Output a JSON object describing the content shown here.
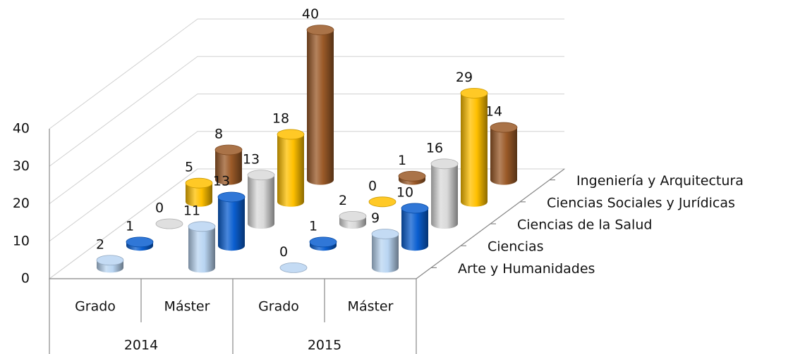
{
  "chart_data": {
    "type": "bar3d",
    "categories": [
      "Grado",
      "Máster",
      "Grado",
      "Máster"
    ],
    "category_groups": [
      "2014",
      "2015"
    ],
    "series": [
      {
        "name": "Arte y Humanidades",
        "color": "#b9d5f2",
        "values": [
          2,
          11,
          0,
          9
        ]
      },
      {
        "name": "Ciencias",
        "color": "#0b5fd0",
        "values": [
          1,
          13,
          1,
          10
        ]
      },
      {
        "name": "Ciencias de la Salud",
        "color": "#d9d9d9",
        "values": [
          0,
          13,
          2,
          16
        ]
      },
      {
        "name": "Ciencias Sociales y Jurídicas",
        "color": "#ffc000",
        "values": [
          5,
          18,
          0,
          29
        ]
      },
      {
        "name": "Ingeniería y Arquitectura",
        "color": "#9b5a28",
        "values": [
          8,
          40,
          1,
          14
        ]
      }
    ],
    "ylim": [
      0,
      40
    ],
    "yticks": [
      0,
      10,
      20,
      30,
      40
    ],
    "grid": true
  }
}
